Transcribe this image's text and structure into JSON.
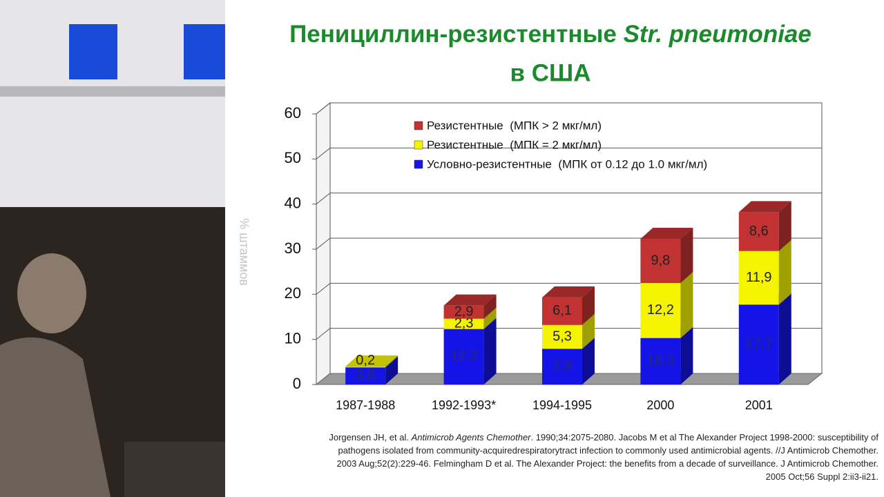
{
  "chart_data": {
    "type": "bar",
    "stacked": true,
    "title": [
      "Пенициллин-резистентные",
      "Str. pneumoniae",
      "в США"
    ],
    "y_label": "% штаммов",
    "categories": [
      "1987-1988",
      "1992-1993*",
      "1994-1995",
      "2000",
      "2001"
    ],
    "series": [
      {
        "name": "Условно-резистентные  (МПК от 0.12 до 1.0 мкг/мл)",
        "color": "#1414e6",
        "values": [
          3.8,
          12.3,
          7.9,
          10.3,
          17.7
        ],
        "value_labels": [
          "3,8",
          "12,3",
          "7,9",
          "10,3",
          "17,7"
        ]
      },
      {
        "name": "Резистентные  (МПК = 2 мкг/мл)",
        "color": "#f4f400",
        "values": [
          0.2,
          2.3,
          5.3,
          12.2,
          11.9
        ],
        "value_labels": [
          "0,2",
          "2,3",
          "5,3",
          "12,2",
          "11,9"
        ]
      },
      {
        "name": "Резистентные  (МПК > 2 мкг/мл)",
        "color": "#c23232",
        "values": [
          null,
          2.9,
          6.1,
          9.8,
          8.6
        ],
        "value_labels": [
          null,
          "2,9",
          "6,1",
          "9,8",
          "8,6"
        ]
      }
    ],
    "ylim": [
      0,
      60
    ],
    "yticks": [
      0,
      10,
      20,
      30,
      40,
      50,
      60
    ],
    "grid": true,
    "source": [
      [
        "Jorgensen JH, et al. ",
        "Antimicrob Agents Chemother",
        ". 1990;34:2075-2080. Jacobs M et al The Alexander Project 1998-2000: susceptibility of"
      ],
      "pathogens isolated from community-acquiredrespiratorytract infection to commonly used antimicrobial agents. //J Antimicrob Chemother.",
      "2003 Aug;52(2):229-46. Felmingham D et al. The Alexander Project: the benefits from a decade of surveillance. J Antimicrob Chemother.",
      "2005 Oct;56 Suppl 2:ii3-ii21."
    ]
  }
}
